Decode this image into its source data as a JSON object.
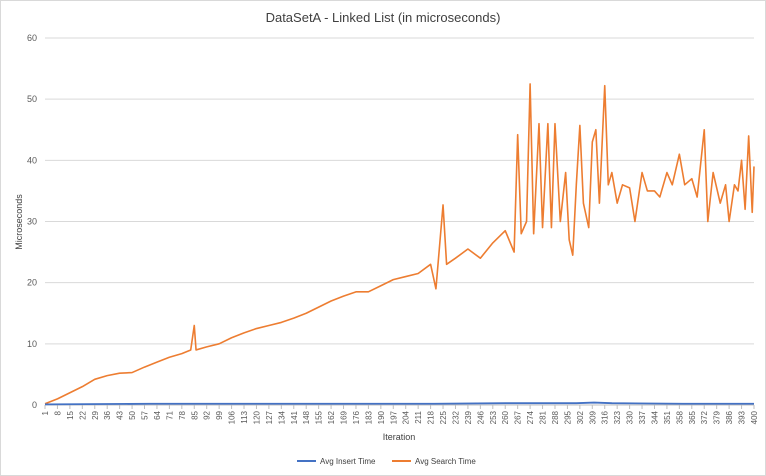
{
  "chart_data": {
    "type": "line",
    "title": "DataSetA - Linked List (in microseconds)",
    "xlabel": "Iteration",
    "ylabel": "Microseconds",
    "ylim": [
      0,
      60
    ],
    "yticks": [
      0,
      10,
      20,
      30,
      40,
      50,
      60
    ],
    "xlim": [
      1,
      400
    ],
    "xtick_labels": [
      1,
      8,
      15,
      22,
      29,
      36,
      43,
      50,
      57,
      64,
      71,
      78,
      85,
      92,
      99,
      106,
      113,
      120,
      127,
      134,
      141,
      148,
      155,
      162,
      169,
      176,
      183,
      190,
      197,
      204,
      211,
      218,
      225,
      232,
      239,
      246,
      253,
      260,
      267,
      274,
      281,
      288,
      295,
      302,
      309,
      316,
      323,
      330,
      337,
      344,
      351,
      358,
      365,
      372,
      379,
      386,
      393,
      400
    ],
    "grid": "horizontal",
    "legend": "bottom",
    "series": [
      {
        "name": "Avg Insert Time",
        "color": "#4472C4",
        "points": [
          [
            1,
            0.1
          ],
          [
            60,
            0.2
          ],
          [
            160,
            0.2
          ],
          [
            220,
            0.2
          ],
          [
            260,
            0.3
          ],
          [
            274,
            0.3
          ],
          [
            300,
            0.3
          ],
          [
            310,
            0.4
          ],
          [
            320,
            0.3
          ],
          [
            360,
            0.2
          ],
          [
            400,
            0.2
          ]
        ]
      },
      {
        "name": "Avg Search Time",
        "color": "#ED7D31",
        "points": [
          [
            1,
            0.2
          ],
          [
            8,
            1.0
          ],
          [
            15,
            2.0
          ],
          [
            22,
            3.0
          ],
          [
            29,
            4.2
          ],
          [
            36,
            4.8
          ],
          [
            43,
            5.2
          ],
          [
            50,
            5.3
          ],
          [
            57,
            6.2
          ],
          [
            64,
            7.0
          ],
          [
            71,
            7.8
          ],
          [
            78,
            8.4
          ],
          [
            83,
            9.0
          ],
          [
            85,
            13.0
          ],
          [
            86,
            9.0
          ],
          [
            92,
            9.5
          ],
          [
            99,
            10.0
          ],
          [
            106,
            11.0
          ],
          [
            113,
            11.8
          ],
          [
            120,
            12.5
          ],
          [
            127,
            13.0
          ],
          [
            134,
            13.5
          ],
          [
            141,
            14.2
          ],
          [
            148,
            15.0
          ],
          [
            155,
            16.0
          ],
          [
            162,
            17.0
          ],
          [
            169,
            17.8
          ],
          [
            176,
            18.5
          ],
          [
            183,
            18.5
          ],
          [
            190,
            19.5
          ],
          [
            197,
            20.5
          ],
          [
            204,
            21.0
          ],
          [
            211,
            21.5
          ],
          [
            218,
            23.0
          ],
          [
            221,
            19.0
          ],
          [
            225,
            32.7
          ],
          [
            227,
            23.0
          ],
          [
            232,
            24.0
          ],
          [
            239,
            25.5
          ],
          [
            246,
            24.0
          ],
          [
            253,
            26.5
          ],
          [
            260,
            28.5
          ],
          [
            265,
            25.0
          ],
          [
            267,
            44.2
          ],
          [
            269,
            28.0
          ],
          [
            272,
            30.0
          ],
          [
            274,
            52.5
          ],
          [
            276,
            28.0
          ],
          [
            279,
            46.0
          ],
          [
            281,
            29.0
          ],
          [
            284,
            46.0
          ],
          [
            286,
            29.0
          ],
          [
            288,
            46.0
          ],
          [
            291,
            30.0
          ],
          [
            294,
            38.0
          ],
          [
            296,
            27.0
          ],
          [
            298,
            24.5
          ],
          [
            300,
            36.0
          ],
          [
            302,
            45.7
          ],
          [
            304,
            33.0
          ],
          [
            307,
            29.0
          ],
          [
            309,
            43.0
          ],
          [
            311,
            45.0
          ],
          [
            313,
            33.0
          ],
          [
            316,
            52.2
          ],
          [
            318,
            36.0
          ],
          [
            320,
            38.0
          ],
          [
            323,
            33.0
          ],
          [
            326,
            36.0
          ],
          [
            330,
            35.5
          ],
          [
            333,
            30.0
          ],
          [
            337,
            38.0
          ],
          [
            340,
            35.0
          ],
          [
            344,
            35.0
          ],
          [
            347,
            34.0
          ],
          [
            351,
            38.0
          ],
          [
            354,
            36.0
          ],
          [
            358,
            41.0
          ],
          [
            361,
            36.0
          ],
          [
            365,
            37.0
          ],
          [
            368,
            34.0
          ],
          [
            372,
            45.0
          ],
          [
            374,
            30.0
          ],
          [
            377,
            38.0
          ],
          [
            381,
            33.0
          ],
          [
            384,
            36.0
          ],
          [
            386,
            30.0
          ],
          [
            389,
            36.0
          ],
          [
            391,
            35.0
          ],
          [
            393,
            40.0
          ],
          [
            395,
            32.0
          ],
          [
            397,
            44.0
          ],
          [
            399,
            31.5
          ],
          [
            400,
            39.0
          ]
        ]
      }
    ]
  }
}
